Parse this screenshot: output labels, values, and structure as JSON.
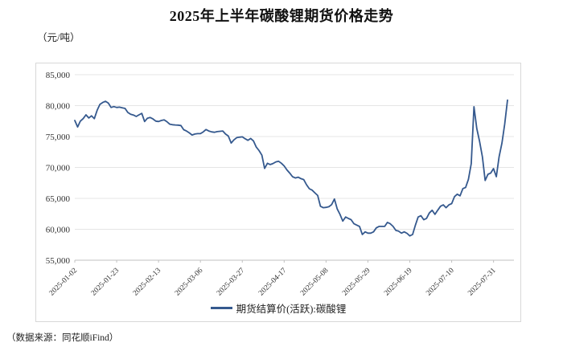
{
  "header": {
    "title": "2025年上半年碳酸锂期货价格走势"
  },
  "chart": {
    "unit_label": "（元/吨）",
    "legend_label": "期货结算价(活跃):碳酸锂"
  },
  "footer": {
    "source_note": "（数据来源：同花顺iFind）"
  },
  "colors": {
    "line": "#35598E",
    "grid": "#E5E5E5",
    "axis": "#C0C0C0",
    "panel_border": "#D8D8D8",
    "tick_text": "#333333"
  },
  "chart_data": {
    "type": "line",
    "title": "2025年上半年碳酸锂期货价格走势",
    "ylabel": "元/吨",
    "series_name": "期货结算价(活跃):碳酸锂",
    "ylim": [
      55000,
      85000
    ],
    "y_ticks": [
      85000,
      80000,
      75000,
      70000,
      65000,
      60000,
      55000
    ],
    "x_tick_labels": [
      "2025-01-02",
      "2025-01-23",
      "2025-02-13",
      "2025-03-06",
      "2025-03-27",
      "2025-04-17",
      "2025-05-08",
      "2025-05-29",
      "2025-06-19",
      "2025-07-10",
      "2025-07-31"
    ],
    "x_tick_interval": 15,
    "grid": "horizontal",
    "legend_position": "bottom",
    "values": [
      77600,
      76550,
      77500,
      77900,
      78500,
      78000,
      78350,
      77900,
      79250,
      80200,
      80500,
      80700,
      80400,
      79700,
      79850,
      79700,
      79750,
      79650,
      79550,
      78900,
      78600,
      78480,
      78250,
      78500,
      78740,
      77430,
      77950,
      78080,
      77850,
      77500,
      77430,
      77600,
      77690,
      77400,
      77000,
      76910,
      76870,
      76840,
      76780,
      76100,
      75900,
      75600,
      75250,
      75400,
      75470,
      75470,
      75750,
      76130,
      75900,
      75750,
      75690,
      75790,
      75850,
      75900,
      75400,
      75080,
      73950,
      74450,
      74820,
      74900,
      74950,
      74650,
      74390,
      74690,
      74300,
      73300,
      72730,
      71990,
      69850,
      70680,
      70470,
      70640,
      70900,
      71000,
      70680,
      70250,
      69600,
      69080,
      68510,
      68300,
      68430,
      68200,
      68040,
      67210,
      66560,
      66340,
      65900,
      65470,
      63730,
      63500,
      63550,
      63650,
      63990,
      64900,
      63290,
      62420,
      61330,
      61990,
      61750,
      61550,
      60900,
      60680,
      60470,
      59160,
      59590,
      59380,
      59380,
      59590,
      60240,
      60470,
      60470,
      60470,
      61120,
      60900,
      60470,
      59815,
      59700,
      59380,
      59590,
      59350,
      58940,
      59160,
      60680,
      61990,
      62200,
      61550,
      61770,
      62640,
      63075,
      62420,
      63075,
      63730,
      63950,
      63500,
      63950,
      64160,
      65290,
      65680,
      65420,
      66590,
      66770,
      68080,
      70600,
      79820,
      76300,
      74200,
      71700,
      67900,
      68900,
      69100,
      69820,
      68510,
      71770,
      73950,
      77000,
      80900
    ]
  }
}
